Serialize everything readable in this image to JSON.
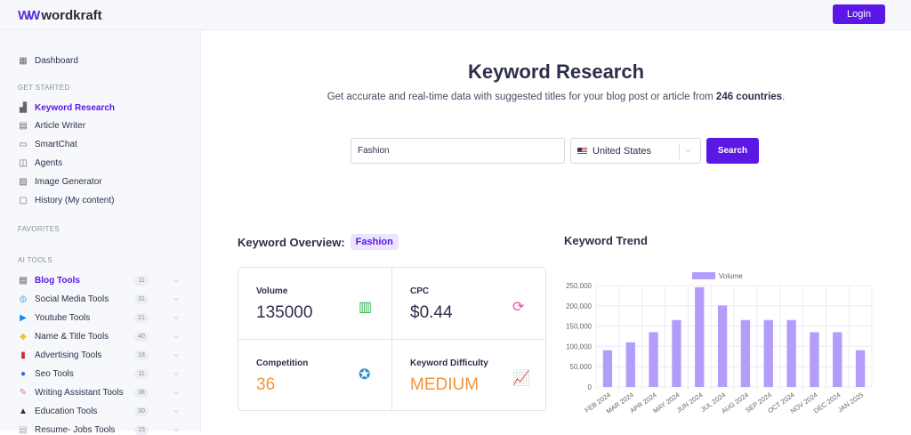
{
  "header": {
    "brand": "wordkraft",
    "login": "Login"
  },
  "sidebar": {
    "dashboard": "Dashboard",
    "get_started_title": "GET STARTED",
    "get_started": [
      {
        "label": "Keyword Research",
        "icon": "chart-icon"
      },
      {
        "label": "Article Writer",
        "icon": "document-icon"
      },
      {
        "label": "SmartChat",
        "icon": "chat-icon"
      },
      {
        "label": "Agents",
        "icon": "agent-icon"
      },
      {
        "label": "Image Generator",
        "icon": "image-icon"
      },
      {
        "label": "History (My content)",
        "icon": "folder-icon"
      }
    ],
    "favorites_title": "FAVORITES",
    "ai_tools_title": "AI TOOLS",
    "ai_tools": [
      {
        "label": "Blog Tools",
        "count": "11"
      },
      {
        "label": "Social Media Tools",
        "count": "31"
      },
      {
        "label": "Youtube Tools",
        "count": "21"
      },
      {
        "label": "Name & Title Tools",
        "count": "40"
      },
      {
        "label": "Advertising Tools",
        "count": "18"
      },
      {
        "label": "Seo Tools",
        "count": "11"
      },
      {
        "label": "Writing Assistant Tools",
        "count": "38"
      },
      {
        "label": "Education Tools",
        "count": "30"
      },
      {
        "label": "Resume- Jobs Tools",
        "count": "15"
      }
    ]
  },
  "main": {
    "title": "Keyword Research",
    "subtitle_pre": "Get accurate and real-time data with suggested titles for your blog post or article from ",
    "subtitle_bold": "246 countries",
    "subtitle_post": ".",
    "keyword_value": "Fashion",
    "country": "United States",
    "search": "Search",
    "overview_title": "Keyword Overview:",
    "overview_tag": "Fashion",
    "trend_title": "Keyword Trend",
    "metrics": {
      "volume_label": "Volume",
      "volume": "135000",
      "cpc_label": "CPC",
      "cpc": "$0.44",
      "competition_label": "Competition",
      "competition": "36",
      "difficulty_label": "Keyword Difficulty",
      "difficulty": "MEDIUM"
    }
  },
  "colors": {
    "accent": "#5b17e6",
    "bar": "#b39dfb",
    "orange": "#f0953a"
  },
  "chart_data": {
    "type": "bar",
    "categories": [
      "FEB 2024",
      "MAR 2024",
      "APR 2024",
      "MAY 2024",
      "JUN 2024",
      "JUL 2024",
      "AUG 2024",
      "SEP 2024",
      "OCT 2024",
      "NOV 2024",
      "DEC 2024",
      "JAN 2025"
    ],
    "series": [
      {
        "name": "Volume",
        "values": [
          90500,
          110000,
          135000,
          165000,
          246000,
          201000,
          165000,
          165000,
          165000,
          135000,
          135000,
          90500
        ]
      }
    ],
    "yticks": [
      "0",
      "50,000",
      "100,000",
      "150,000",
      "200,000",
      "250,000"
    ],
    "ylim": [
      0,
      250000
    ],
    "grid": true,
    "legend": "top"
  }
}
